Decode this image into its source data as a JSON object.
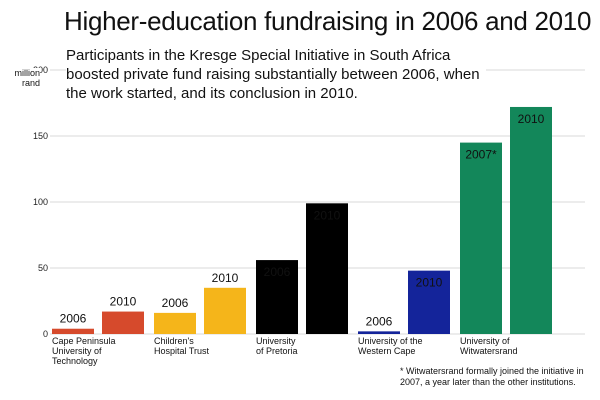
{
  "chart_data": {
    "type": "bar",
    "title": "Higher-education fundraising in 2006 and 2010",
    "subtitle": "Participants in the Kresge Special Initiative in South Africa boosted private fund raising substantially between 2006, when the work started, and its conclusion in 2010.",
    "ylabel": "million rand",
    "ylim": [
      0,
      200
    ],
    "yticks": [
      0,
      50,
      100,
      150,
      200
    ],
    "grid": true,
    "legend": "none",
    "groups": [
      {
        "label": [
          "Cape Peninsula",
          "University of",
          "Technology"
        ],
        "bars": [
          {
            "year": "2006",
            "value": 4,
            "color": "#d64a2c"
          },
          {
            "year": "2010",
            "value": 17,
            "color": "#d64a2c"
          }
        ]
      },
      {
        "label": [
          "Children's",
          "Hospital Trust"
        ],
        "bars": [
          {
            "year": "2006",
            "value": 16,
            "color": "#f5b51a"
          },
          {
            "year": "2010",
            "value": 35,
            "color": "#f5b51a"
          }
        ]
      },
      {
        "label": [
          "University",
          "of Pretoria"
        ],
        "bars": [
          {
            "year": "2006",
            "value": 56,
            "color": "#000000"
          },
          {
            "year": "2010",
            "value": 99,
            "color": "#000000"
          }
        ]
      },
      {
        "label": [
          "University of the",
          "Western Cape"
        ],
        "bars": [
          {
            "year": "2006",
            "value": 2,
            "color": "#14249a"
          },
          {
            "year": "2010",
            "value": 48,
            "color": "#14249a"
          }
        ]
      },
      {
        "label": [
          "University of",
          "Witwatersrand"
        ],
        "bars": [
          {
            "year": "2007*",
            "value": 145,
            "color": "#13875a"
          },
          {
            "year": "2010",
            "value": 172,
            "color": "#13875a"
          }
        ]
      }
    ],
    "footnote": "* Witwatersrand formally joined the initiative in 2007, a year later than the other institutions."
  }
}
